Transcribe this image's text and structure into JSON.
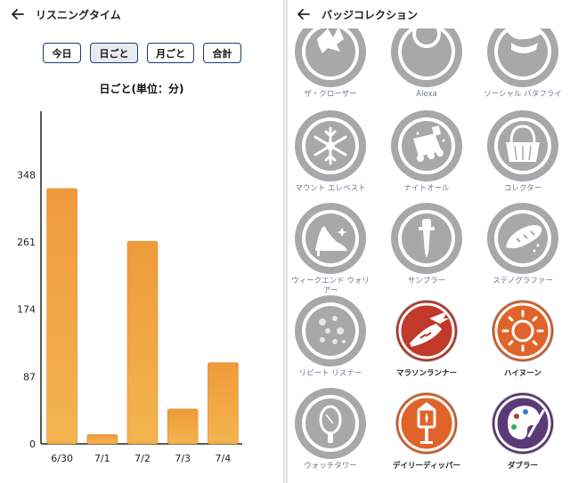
{
  "listening": {
    "title": "リスニングタイム",
    "tabs": [
      {
        "label": "今日",
        "active": false
      },
      {
        "label": "日ごと",
        "active": true
      },
      {
        "label": "月ごと",
        "active": false
      },
      {
        "label": "合計",
        "active": false
      }
    ],
    "chart_title": "日ごと(単位：分)"
  },
  "chart_data": {
    "type": "bar",
    "title": "日ごと(単位：分)",
    "categories": [
      "6/30",
      "7/1",
      "7/2",
      "7/3",
      "7/4"
    ],
    "values": [
      330,
      12,
      262,
      45,
      105
    ],
    "yticks": [
      "0",
      "87",
      "174",
      "261",
      "348"
    ],
    "ylim": [
      0,
      430
    ],
    "bar_color": "#f0a040",
    "grid": false
  },
  "badges": {
    "title": "バッジコレクション",
    "items": [
      {
        "label": "ザ・クローザー",
        "icon": "wolf-icon",
        "earned": false
      },
      {
        "label": "Alexa",
        "icon": "alexa-icon",
        "earned": false
      },
      {
        "label": "ソーシャル バタフライ",
        "icon": "butterfly-hand-icon",
        "earned": false
      },
      {
        "label": "マウント エレベスト",
        "icon": "snowflake-icon",
        "earned": false
      },
      {
        "label": "ナイトオール",
        "icon": "train-icon",
        "earned": false
      },
      {
        "label": "コレクター",
        "icon": "basket-icon",
        "earned": false
      },
      {
        "label": "ウィークエンド ウォリアー",
        "icon": "high-heel-icon",
        "earned": false
      },
      {
        "label": "サンプラー",
        "icon": "dropper-icon",
        "earned": false
      },
      {
        "label": "ステノグラファー",
        "icon": "baguette-icon",
        "earned": false
      },
      {
        "label": "リピート リスナー",
        "icon": "cookie-icon",
        "earned": false
      },
      {
        "label": "マラソンランナー",
        "icon": "winged-shoe-icon",
        "earned": true,
        "color": "#c0392b"
      },
      {
        "label": "ハイヌーン",
        "icon": "sun-icon",
        "earned": true,
        "color": "#e0642a"
      },
      {
        "label": "ウォッチタワー",
        "icon": "mirror-icon",
        "earned": false
      },
      {
        "label": "デイリーディッパー",
        "icon": "lantern-icon",
        "earned": true,
        "color": "#e0642a"
      },
      {
        "label": "ダブラー",
        "icon": "palette-icon",
        "earned": true,
        "color": "#5b3a78"
      }
    ]
  }
}
